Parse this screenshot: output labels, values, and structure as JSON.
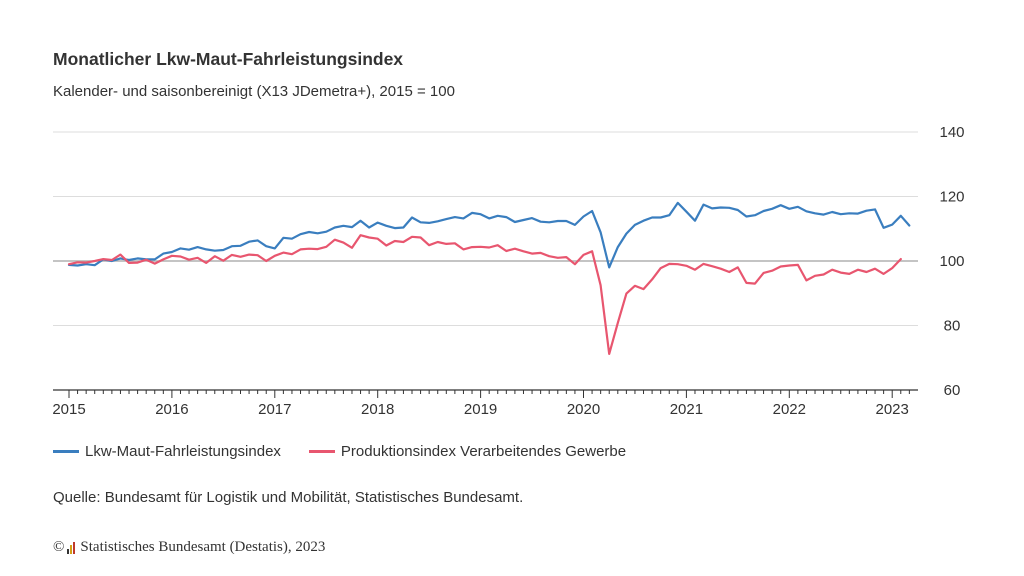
{
  "title": "Monatlicher Lkw-Maut-Fahrleistungsindex",
  "subtitle": "Kalender- und saisonbereinigt (X13 JDemetra+), 2015 = 100",
  "source": "Quelle: Bundesamt für Logistik und Mobilität, Statistisches Bundesamt.",
  "copyright": {
    "symbol": "©",
    "text": "Statistisches Bundesamt (Destatis), 2023"
  },
  "colors": {
    "series1": "#3a7ebf",
    "series2": "#e8566f",
    "reference_line": "#b0b0b0",
    "gridline": "#dddddd",
    "axis": "#333333"
  },
  "chart_data": {
    "type": "line",
    "title": "Monatlicher Lkw-Maut-Fahrleistungsindex",
    "subtitle": "Kalender- und saisonbereinigt (X13 JDemetra+), 2015 = 100",
    "x_start": "2015-01",
    "x_ticks": [
      "2015",
      "2016",
      "2017",
      "2018",
      "2019",
      "2020",
      "2021",
      "2022",
      "2023"
    ],
    "y_ticks": [
      60,
      80,
      100,
      120,
      140
    ],
    "ylim": [
      60,
      140
    ],
    "y_axis_position": "right",
    "grid": "horizontal",
    "reference_line": 100,
    "legend_position": "bottom",
    "series": [
      {
        "name": "Lkw-Maut-Fahrleistungsindex",
        "color": "#3a7ebf",
        "values": [
          98.8,
          98.6,
          99.0,
          98.7,
          100.5,
          100.0,
          100.8,
          100.3,
          100.8,
          100.5,
          100.5,
          102.3,
          102.8,
          103.9,
          103.5,
          104.3,
          103.6,
          103.2,
          103.4,
          104.6,
          104.7,
          106.0,
          106.4,
          104.6,
          103.9,
          107.2,
          106.9,
          108.3,
          109.0,
          108.6,
          109.1,
          110.4,
          110.9,
          110.5,
          112.5,
          110.4,
          111.9,
          110.9,
          110.2,
          110.4,
          113.5,
          112.0,
          111.8,
          112.3,
          113.0,
          113.6,
          113.2,
          114.9,
          114.5,
          113.2,
          114.0,
          113.6,
          112.1,
          112.7,
          113.3,
          112.2,
          112.0,
          112.4,
          112.4,
          111.2,
          113.8,
          115.5,
          108.9,
          98.0,
          104.3,
          108.5,
          111.2,
          112.5,
          113.5,
          113.5,
          114.2,
          118.0,
          115.3,
          112.5,
          117.5,
          116.3,
          116.6,
          116.5,
          115.8,
          113.8,
          114.2,
          115.5,
          116.2,
          117.3,
          116.2,
          116.8,
          115.4,
          114.8,
          114.4,
          115.2,
          114.5,
          114.8,
          114.7,
          115.6,
          116.0,
          110.3,
          111.3,
          114.0,
          111.0
        ]
      },
      {
        "name": "Produktionsindex Verarbeitendes Gewerbe",
        "color": "#e8566f",
        "values": [
          99.0,
          99.6,
          99.5,
          100.0,
          100.6,
          100.3,
          102.0,
          99.4,
          99.5,
          100.4,
          99.2,
          100.5,
          101.6,
          101.4,
          100.4,
          101.0,
          99.4,
          101.5,
          100.1,
          101.9,
          101.3,
          102.0,
          101.8,
          100.0,
          101.6,
          102.6,
          102.1,
          103.6,
          103.8,
          103.7,
          104.4,
          106.6,
          105.7,
          104.1,
          108.0,
          107.3,
          106.9,
          104.8,
          106.2,
          105.9,
          107.5,
          107.3,
          104.9,
          105.9,
          105.3,
          105.5,
          103.6,
          104.3,
          104.4,
          104.2,
          104.9,
          103.1,
          103.8,
          103.0,
          102.3,
          102.5,
          101.5,
          101.0,
          101.2,
          99.0,
          101.9,
          103.0,
          92.5,
          71.2,
          80.8,
          89.9,
          92.3,
          91.3,
          94.3,
          97.8,
          99.1,
          99.0,
          98.5,
          97.3,
          99.1,
          98.4,
          97.6,
          96.6,
          98.0,
          93.2,
          93.0,
          96.3,
          97.0,
          98.3,
          98.6,
          98.8,
          94.0,
          95.4,
          95.8,
          97.3,
          96.4,
          96.0,
          97.3,
          96.6,
          97.6,
          96.0,
          97.8,
          100.6
        ]
      }
    ]
  }
}
